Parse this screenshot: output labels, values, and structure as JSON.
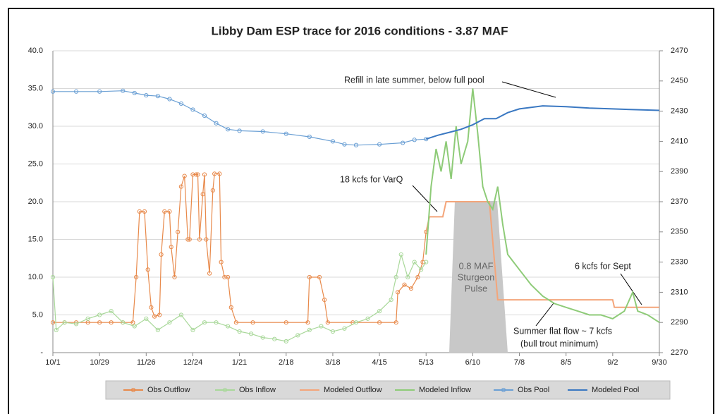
{
  "chart_data": {
    "type": "line",
    "title": "Libby Dam ESP trace for 2016 conditions - 3.87 MAF",
    "xlim": [
      0,
      364
    ],
    "xticks": [
      {
        "value": 0,
        "label": "10/1"
      },
      {
        "value": 28,
        "label": "10/29"
      },
      {
        "value": 56,
        "label": "11/26"
      },
      {
        "value": 84,
        "label": "12/24"
      },
      {
        "value": 112,
        "label": "1/21"
      },
      {
        "value": 140,
        "label": "2/18"
      },
      {
        "value": 168,
        "label": "3/18"
      },
      {
        "value": 196,
        "label": "4/15"
      },
      {
        "value": 224,
        "label": "5/13"
      },
      {
        "value": 252,
        "label": "6/10"
      },
      {
        "value": 280,
        "label": "7/8"
      },
      {
        "value": 308,
        "label": "8/5"
      },
      {
        "value": 336,
        "label": "9/2"
      },
      {
        "value": 364,
        "label": "9/30"
      }
    ],
    "ylim": [
      0,
      40
    ],
    "yticks": [
      {
        "value": 0,
        "label": "-"
      },
      {
        "value": 5,
        "label": "5.0"
      },
      {
        "value": 10,
        "label": "10.0"
      },
      {
        "value": 15,
        "label": "15.0"
      },
      {
        "value": 20,
        "label": "20.0"
      },
      {
        "value": 25,
        "label": "25.0"
      },
      {
        "value": 30,
        "label": "30.0"
      },
      {
        "value": 35,
        "label": "35.0"
      },
      {
        "value": 40,
        "label": "40.0"
      }
    ],
    "y2lim": [
      2270,
      2470
    ],
    "y2ticks": [
      2270,
      2290,
      2310,
      2330,
      2350,
      2370,
      2390,
      2410,
      2430,
      2450,
      2470
    ],
    "grid": true,
    "series": [
      {
        "name": "Obs Outflow",
        "color": "#e8894a",
        "marker": true,
        "x": [
          0,
          7,
          14,
          21,
          28,
          35,
          42,
          48,
          50,
          52,
          55,
          57,
          59,
          61,
          64,
          65,
          67,
          70,
          71,
          73,
          75,
          77,
          79,
          81,
          82,
          84,
          86,
          87,
          88,
          90,
          91,
          92,
          94,
          96,
          97,
          100,
          101,
          103,
          105,
          107,
          110,
          120,
          140,
          153,
          154,
          160,
          163,
          165,
          180,
          196,
          206,
          207,
          211,
          215,
          219,
          222,
          224
        ],
        "values": [
          4,
          4,
          4,
          4,
          4,
          4,
          4,
          4,
          10,
          18.7,
          18.7,
          11,
          6,
          4.8,
          5,
          13,
          18.7,
          18.7,
          14,
          10,
          16,
          22,
          23.4,
          15,
          15,
          23.6,
          23.6,
          23.6,
          15,
          21,
          23.6,
          15,
          10.5,
          21.5,
          23.7,
          23.7,
          12,
          10,
          10,
          6,
          4,
          4,
          4,
          4,
          10,
          10,
          7,
          4,
          4,
          4,
          4,
          8,
          9,
          8.5,
          10,
          12,
          16
        ]
      },
      {
        "name": "Obs Inflow",
        "color": "#a9d89a",
        "marker": true,
        "x": [
          0,
          2,
          7,
          14,
          21,
          28,
          35,
          42,
          49,
          56,
          63,
          70,
          77,
          84,
          91,
          98,
          105,
          112,
          119,
          126,
          133,
          140,
          147,
          154,
          161,
          168,
          175,
          182,
          189,
          196,
          203,
          206,
          209,
          213,
          217,
          221,
          224
        ],
        "values": [
          10,
          3,
          4,
          3.8,
          4.5,
          5,
          5.5,
          4,
          3.5,
          4.5,
          3,
          4,
          5,
          3,
          4,
          4,
          3.5,
          2.8,
          2.5,
          2,
          1.8,
          1.5,
          2.3,
          3,
          3.5,
          2.8,
          3.2,
          4,
          4.5,
          5.5,
          7,
          10,
          13,
          10,
          12,
          11,
          12
        ]
      },
      {
        "name": "Modeled Outflow",
        "color": "#f4a57a",
        "marker": false,
        "x": [
          224,
          226,
          234,
          236,
          262,
          267,
          300,
          336,
          337,
          364
        ],
        "values": [
          16,
          18,
          18,
          20,
          20,
          7,
          7,
          7,
          6,
          6
        ]
      },
      {
        "name": "Modeled Inflow",
        "color": "#8ecb78",
        "marker": false,
        "x": [
          224,
          227,
          230,
          233,
          236,
          239,
          242,
          245,
          249,
          252,
          255,
          258,
          261,
          264,
          267,
          270,
          273,
          280,
          287,
          294,
          301,
          308,
          315,
          322,
          329,
          336,
          343,
          348,
          351,
          357,
          364
        ],
        "values": [
          13,
          22,
          27,
          24,
          28,
          23,
          30,
          25,
          28,
          35,
          29,
          22,
          20,
          19,
          22,
          17,
          13,
          11,
          9,
          7.5,
          6.5,
          6,
          5.5,
          5,
          5,
          4.5,
          5.5,
          8,
          5.5,
          5,
          4
        ]
      },
      {
        "name": "Obs Pool",
        "color": "#6a9fd4",
        "marker": true,
        "axis": "y2",
        "x": [
          0,
          14,
          28,
          42,
          49,
          56,
          63,
          70,
          77,
          84,
          91,
          98,
          105,
          112,
          126,
          140,
          154,
          168,
          175,
          182,
          196,
          210,
          217,
          224
        ],
        "values": [
          2443,
          2443,
          2443,
          2443.5,
          2442,
          2440.5,
          2440,
          2438,
          2435,
          2431,
          2427,
          2422,
          2418,
          2417,
          2416.5,
          2415,
          2413,
          2410,
          2408,
          2407.5,
          2408,
          2409,
          2411,
          2411.5
        ]
      },
      {
        "name": "Modeled Pool",
        "color": "#3a78c2",
        "marker": false,
        "axis": "y2",
        "x": [
          224,
          231,
          238,
          245,
          252,
          259,
          266,
          273,
          280,
          294,
          308,
          322,
          336,
          350,
          364
        ],
        "values": [
          2411.5,
          2414,
          2416,
          2418,
          2421,
          2425,
          2425,
          2429,
          2431.5,
          2433.5,
          2433,
          2432,
          2431.5,
          2431,
          2430.5
        ]
      }
    ],
    "annotations": [
      "Refill in late summer, below full pool",
      "18 kcfs for VarQ",
      "6 kcfs for Sept",
      "Summer flat flow ~ 7 kcfs",
      "(bull trout minimum)"
    ],
    "pulse_label": [
      "0.8 MAF",
      "Sturgeon",
      "Pulse"
    ]
  }
}
